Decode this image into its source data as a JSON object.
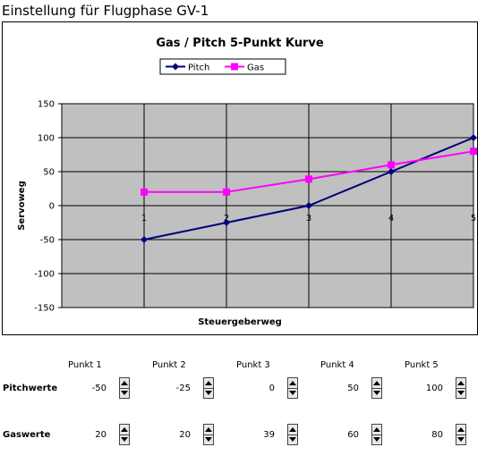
{
  "page_title": "Einstellung für Flugphase GV-1",
  "chart_data": {
    "type": "line",
    "title": "Gas / Pitch 5-Punkt Kurve",
    "xlabel": "Steuergeberweg",
    "ylabel": "Servoweg",
    "categories": [
      "1",
      "2",
      "3",
      "4",
      "5"
    ],
    "ylim": [
      -150,
      150
    ],
    "yticks": [
      150,
      100,
      50,
      0,
      -50,
      -100,
      -150
    ],
    "ytick_labels": [
      "150",
      "100",
      "50",
      "0",
      "-50",
      "-100",
      "-150"
    ],
    "grid": true,
    "legend_position": "top-center",
    "background": "#c0c0c0",
    "series": [
      {
        "name": "Pitch",
        "values": [
          -50,
          -25,
          0,
          50,
          100
        ],
        "color": "#000080",
        "marker": "diamond"
      },
      {
        "name": "Gas",
        "values": [
          20,
          20,
          39,
          60,
          80
        ],
        "color": "#ff00ff",
        "marker": "square"
      }
    ]
  },
  "controls": {
    "points": [
      "Punkt 1",
      "Punkt 2",
      "Punkt 3",
      "Punkt 4",
      "Punkt 5"
    ],
    "rows": [
      {
        "label": "Pitchwerte",
        "values": [
          "-50",
          "-25",
          "0",
          "50",
          "100"
        ]
      },
      {
        "label": "Gaswerte",
        "values": [
          "20",
          "20",
          "39",
          "60",
          "80"
        ]
      }
    ]
  }
}
